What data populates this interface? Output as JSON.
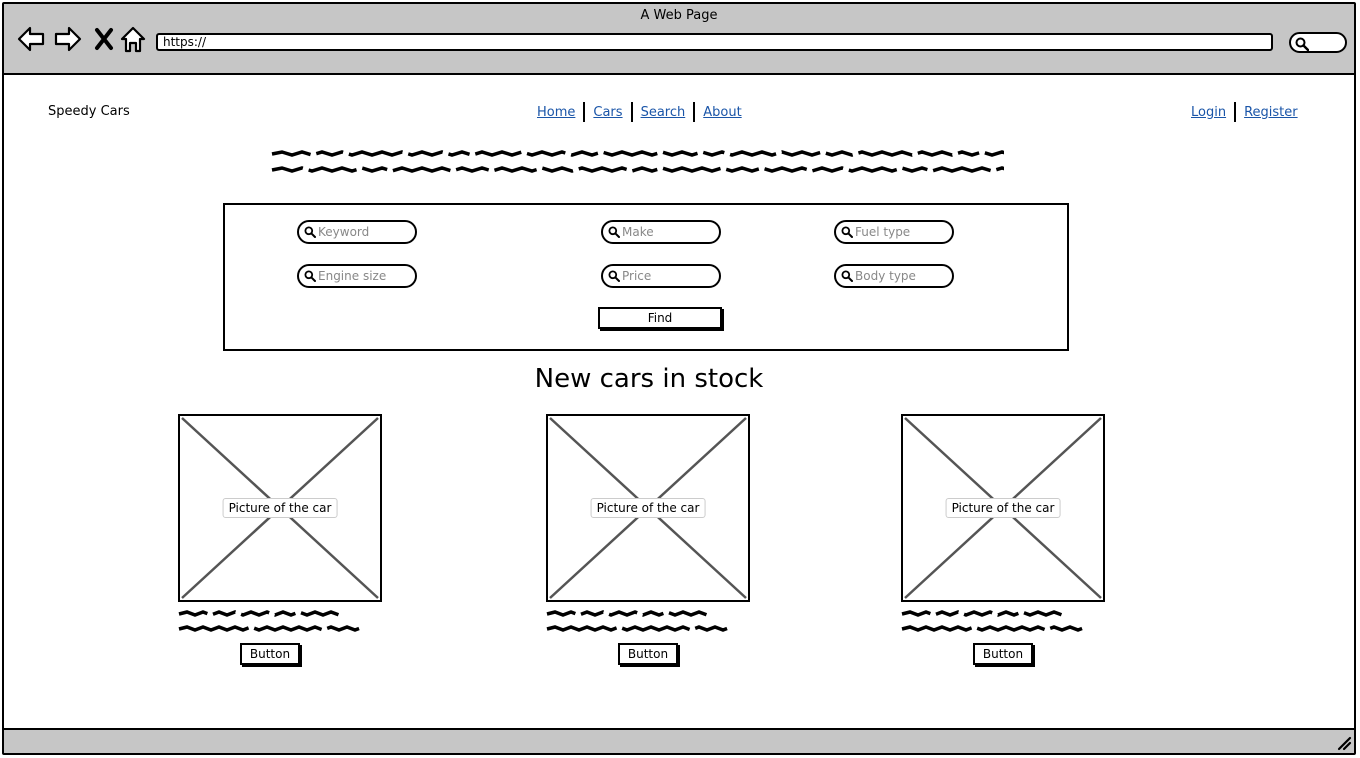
{
  "window": {
    "title": "A Web Page",
    "url": "https://"
  },
  "site": {
    "brand": "Speedy Cars",
    "nav": [
      "Home",
      "Cars",
      "Search",
      "About"
    ],
    "auth": [
      "Login",
      "Register"
    ]
  },
  "search": {
    "fields": {
      "keyword": "Keyword",
      "make": "Make",
      "fuel_type": "Fuel type",
      "engine_size": "Engine size",
      "price": "Price",
      "body_type": "Body type"
    },
    "find_label": "Find"
  },
  "section_title": "New cars in stock",
  "cards": [
    {
      "image_label": "Picture of the car",
      "button_label": "Button"
    },
    {
      "image_label": "Picture of the car",
      "button_label": "Button"
    },
    {
      "image_label": "Picture of the car",
      "button_label": "Button"
    }
  ],
  "icons": {
    "back": "arrow-left-icon",
    "forward": "arrow-right-icon",
    "stop": "close-icon",
    "home": "home-icon",
    "search": "search-icon",
    "resize": "resize-grip-icon"
  }
}
